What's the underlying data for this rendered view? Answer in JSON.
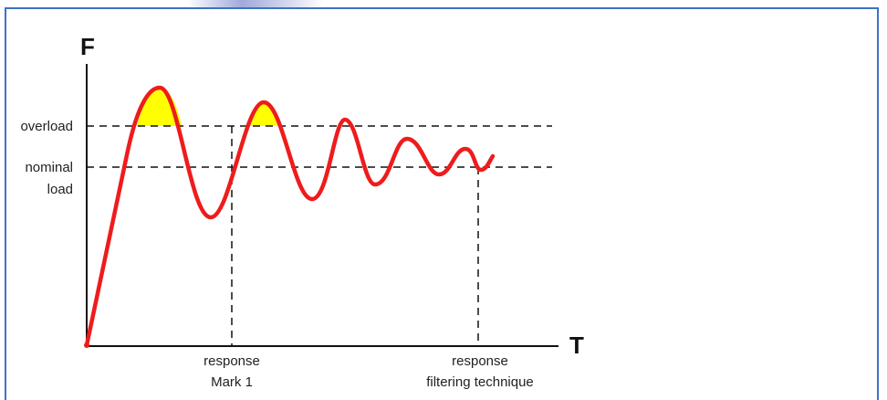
{
  "diagram": {
    "y_axis_title": "F",
    "x_axis_title": "T",
    "levels": {
      "overload": "overload",
      "nominal_line1": "nominal",
      "nominal_line2": "load"
    },
    "markers": {
      "mark1_line1": "response",
      "mark1_line2": "Mark 1",
      "filter_line1": "response",
      "filter_line2": "filtering technique"
    },
    "colors": {
      "curve": "#ee1c1c",
      "overshoot_fill": "#ffff00",
      "frame": "#3b74c4",
      "axis": "#111111",
      "dashed": "#111111"
    }
  }
}
